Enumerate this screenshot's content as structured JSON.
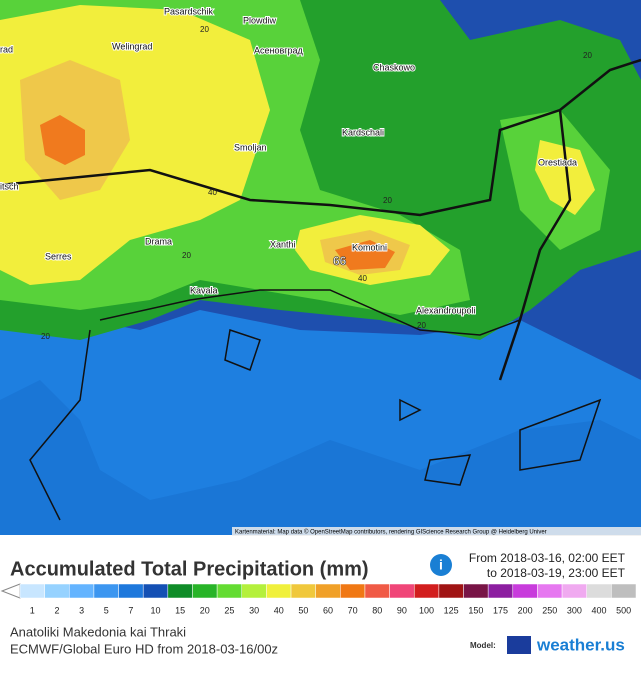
{
  "map": {
    "places": [
      "Pasardschik",
      "Plowdiw",
      "Welingrad",
      "Асеновград",
      "Chaskowo",
      "Kardschali",
      "Smoljan",
      "Orestiada",
      "Xanthi",
      "Komotini",
      "Drama",
      "Serres",
      "Kavala",
      "Alexandroupoli",
      "rad",
      "itsch"
    ],
    "contour_labels": [
      "20",
      "40",
      "20",
      "20",
      "40",
      "20",
      "20",
      "20"
    ],
    "max_label": "66",
    "attribution": "Kartenmaterial: Map data © OpenStreetMap contributors, rendering GIScience Research Group @ Heidelberg Univer"
  },
  "legend": {
    "title": "Accumulated Total Precipitation (mm)",
    "period_from": "From 2018-03-16, 02:00 EET",
    "period_to": "to 2018-03-19, 23:00 EET",
    "scale": [
      "1",
      "2",
      "3",
      "5",
      "7",
      "10",
      "15",
      "20",
      "25",
      "30",
      "40",
      "50",
      "60",
      "70",
      "80",
      "90",
      "100",
      "125",
      "150",
      "175",
      "200",
      "250",
      "300",
      "400",
      "500"
    ],
    "colors": [
      "#c8e6ff",
      "#96d2ff",
      "#64b4ff",
      "#3c96f0",
      "#1e78dc",
      "#1450b4",
      "#0f8c28",
      "#28b428",
      "#64dc32",
      "#b4f03c",
      "#f0f03c",
      "#f0c83c",
      "#f0a028",
      "#f07814",
      "#f05a46",
      "#f04678",
      "#d21e1e",
      "#a01414",
      "#781446",
      "#8c1ea0",
      "#c83cdc",
      "#e678f0",
      "#f0aaf0",
      "#dcdcdc",
      "#bebebe"
    ]
  },
  "footer": {
    "region": "Anatoliki Makedonia kai Thraki",
    "model_run": "ECMWF/Global Euro HD from 2018-03-16/00z",
    "model_label": "Model:",
    "brand": "weather.us"
  }
}
